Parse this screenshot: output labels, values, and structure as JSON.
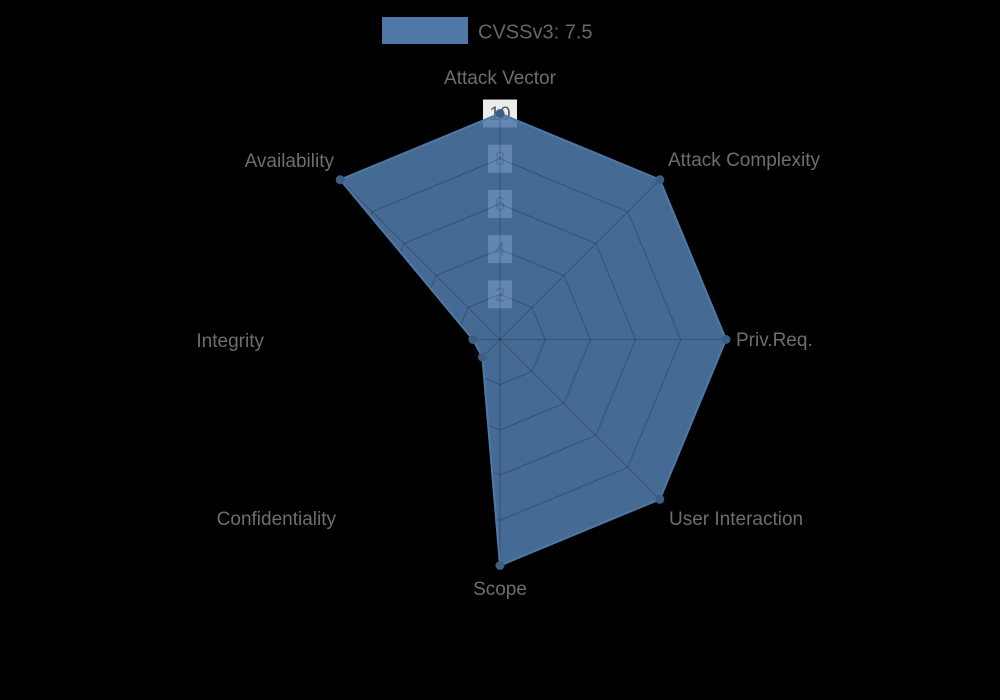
{
  "legend": {
    "label": "CVSSv3: 7.5",
    "swatch_color": "#4E79A7"
  },
  "chart_data": {
    "type": "radar",
    "title": "",
    "categories": [
      "Attack Vector",
      "Attack Complexity",
      "Priv.Req.",
      "User Interaction",
      "Scope",
      "Confidentiality",
      "Integrity",
      "Availability"
    ],
    "series": [
      {
        "name": "CVSSv3: 7.5",
        "values": [
          10,
          10,
          10,
          10,
          10,
          1.1,
          1.2,
          10
        ]
      }
    ],
    "scale": {
      "min": 0,
      "max": 10,
      "tick_step": 2,
      "ticks": [
        2,
        4,
        6,
        8,
        10
      ]
    },
    "legend_position": "top",
    "grid": true,
    "colors": {
      "fill": "#4E79A7",
      "fill_opacity": 0.88,
      "border": "#4E79A7",
      "marker": "#3C5E85",
      "grid_line": "rgba(0,0,0,0.18)",
      "tick_backdrop": "rgba(255,255,255,0.92)",
      "tick_text": "#595959",
      "label_text": "#6e6e6e",
      "background": "#000000"
    }
  }
}
